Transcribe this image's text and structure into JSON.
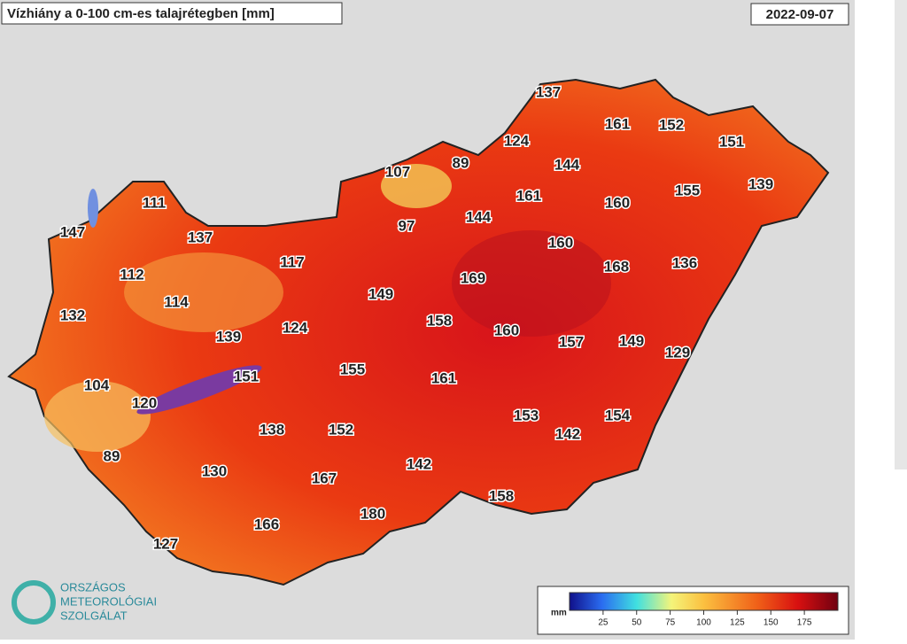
{
  "header": {
    "title": "Vízhiány a 0-100 cm-es talajrétegben [mm]",
    "date": "2022-09-07"
  },
  "stations": [
    137,
    161,
    152,
    151,
    124,
    89,
    107,
    144,
    155,
    139,
    111,
    161,
    160,
    147,
    137,
    97,
    144,
    160,
    117,
    168,
    136,
    112,
    149,
    169,
    114,
    132,
    124,
    158,
    160,
    157,
    149,
    139,
    129,
    155,
    151,
    161,
    104,
    120,
    153,
    154,
    138,
    152,
    142,
    89,
    142,
    130,
    167,
    158,
    180,
    166,
    127
  ],
  "legend": {
    "unit": "mm",
    "range": [
      0,
      200
    ],
    "ticks": [
      25,
      50,
      75,
      100,
      125,
      150,
      175
    ]
  },
  "logo": {
    "line1": "ORSZÁGOS",
    "line2": "METEOROLÓGIAI",
    "line3": "SZOLGÁLAT"
  }
}
